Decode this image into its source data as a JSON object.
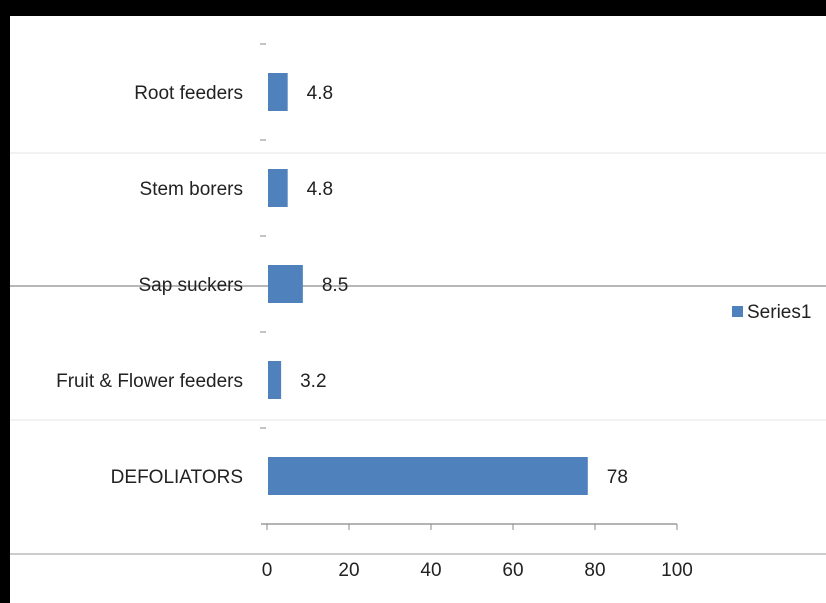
{
  "chart_data": {
    "type": "bar",
    "orientation": "horizontal",
    "categories": [
      "Root feeders",
      "Stem borers",
      "Sap suckers",
      "Fruit & Flower feeders",
      "DEFOLIATORS"
    ],
    "series": [
      {
        "name": "Series1",
        "values": [
          4.8,
          4.8,
          8.5,
          3.2,
          78
        ],
        "color": "#4f81bd"
      }
    ],
    "xlim": [
      0,
      100
    ],
    "x_ticks": [
      0,
      20,
      40,
      60,
      80,
      100
    ],
    "title": "",
    "xlabel": "",
    "ylabel": "",
    "grid": false,
    "legend": "right"
  }
}
